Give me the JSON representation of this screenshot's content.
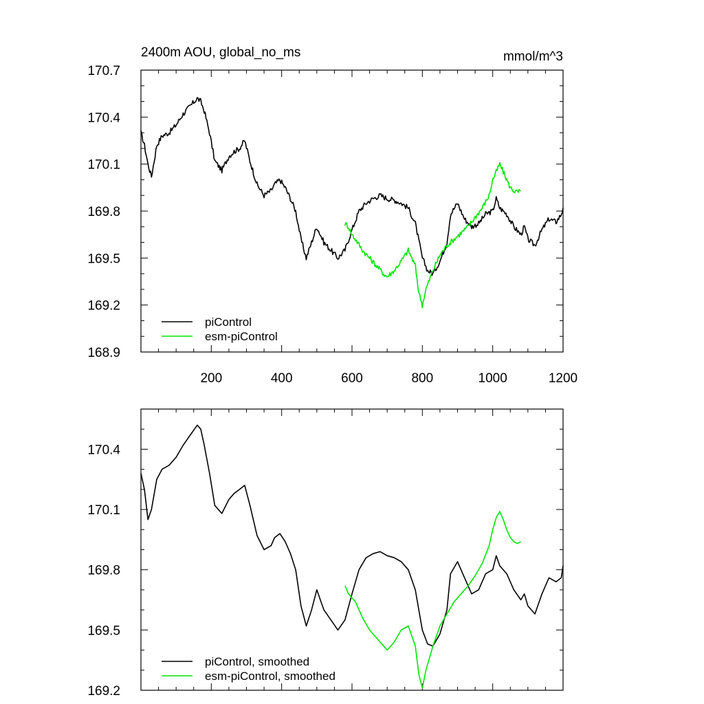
{
  "chart_data": [
    {
      "type": "line",
      "title_left": "2400m AOU, global_no_ms",
      "title_right": "mmol/m^3",
      "xlim": [
        0,
        1200
      ],
      "ylim": [
        168.9,
        170.7
      ],
      "xticks": [
        200,
        400,
        600,
        800,
        1000,
        1200
      ],
      "yticks": [
        168.9,
        169.2,
        169.5,
        169.8,
        170.1,
        170.4,
        170.7
      ],
      "ytick_labels": [
        "168.9",
        "169.2",
        "169.5",
        "169.8",
        "170.1",
        "170.4",
        "170.7"
      ],
      "legend_position": "bottom-left",
      "series": [
        {
          "name": "piControl",
          "color": "#000000",
          "x": [
            0,
            10,
            20,
            30,
            45,
            60,
            80,
            100,
            120,
            140,
            160,
            170,
            180,
            195,
            210,
            230,
            250,
            265,
            280,
            295,
            310,
            330,
            350,
            370,
            380,
            395,
            410,
            425,
            440,
            455,
            470,
            485,
            500,
            520,
            540,
            560,
            580,
            600,
            620,
            640,
            660,
            680,
            700,
            720,
            740,
            760,
            780,
            800,
            815,
            830,
            850,
            870,
            880,
            900,
            920,
            940,
            960,
            980,
            1000,
            1010,
            1020,
            1040,
            1060,
            1080,
            1090,
            1100,
            1120,
            1140,
            1160,
            1180,
            1195,
            1200
          ],
          "y": [
            170.3,
            170.22,
            170.1,
            170.02,
            170.22,
            170.28,
            170.3,
            170.35,
            170.42,
            170.47,
            170.52,
            170.5,
            170.44,
            170.3,
            170.12,
            170.06,
            170.15,
            170.18,
            170.2,
            170.25,
            170.12,
            169.97,
            169.9,
            169.93,
            169.97,
            170.0,
            169.95,
            169.88,
            169.8,
            169.62,
            169.5,
            169.6,
            169.7,
            169.6,
            169.55,
            169.5,
            169.55,
            169.68,
            169.8,
            169.85,
            169.88,
            169.9,
            169.88,
            169.87,
            169.85,
            169.82,
            169.72,
            169.5,
            169.42,
            169.4,
            169.48,
            169.6,
            169.78,
            169.85,
            169.75,
            169.7,
            169.72,
            169.78,
            169.8,
            169.88,
            169.82,
            169.78,
            169.7,
            169.65,
            169.7,
            169.62,
            169.58,
            169.68,
            169.75,
            169.73,
            169.78,
            169.82
          ]
        },
        {
          "name": "esm-piControl",
          "color": "#00e600",
          "x": [
            580,
            590,
            600,
            610,
            630,
            650,
            670,
            690,
            700,
            720,
            740,
            760,
            780,
            790,
            800,
            810,
            830,
            850,
            870,
            890,
            910,
            930,
            950,
            970,
            990,
            1000,
            1010,
            1020,
            1030,
            1040,
            1050,
            1060,
            1070,
            1080
          ],
          "y": [
            169.72,
            169.7,
            169.65,
            169.62,
            169.55,
            169.5,
            169.45,
            169.4,
            169.38,
            169.42,
            169.48,
            169.55,
            169.45,
            169.28,
            169.2,
            169.3,
            169.42,
            169.52,
            169.58,
            169.62,
            169.66,
            169.7,
            169.76,
            169.82,
            169.9,
            170.0,
            170.05,
            170.1,
            170.05,
            170.0,
            169.95,
            169.93,
            169.92,
            169.93
          ]
        }
      ]
    },
    {
      "type": "line",
      "xlim": [
        0,
        1200
      ],
      "ylim": [
        169.2,
        170.6
      ],
      "xticks": [
        200,
        400,
        600,
        800,
        1000,
        1200
      ],
      "yticks": [
        169.2,
        169.5,
        169.8,
        170.1,
        170.4
      ],
      "ytick_labels": [
        "169.2",
        "169.5",
        "169.8",
        "170.1",
        "170.4"
      ],
      "legend_position": "bottom-left",
      "series": [
        {
          "name": "piControl, smoothed",
          "color": "#000000",
          "x": [
            0,
            10,
            20,
            30,
            45,
            60,
            80,
            100,
            120,
            140,
            160,
            170,
            180,
            195,
            210,
            230,
            250,
            265,
            280,
            295,
            310,
            330,
            350,
            370,
            380,
            395,
            410,
            425,
            440,
            455,
            470,
            485,
            500,
            520,
            540,
            560,
            580,
            600,
            620,
            640,
            660,
            680,
            700,
            720,
            740,
            760,
            780,
            800,
            815,
            830,
            850,
            870,
            880,
            900,
            920,
            940,
            960,
            980,
            1000,
            1010,
            1020,
            1040,
            1060,
            1080,
            1090,
            1100,
            1120,
            1140,
            1160,
            1180,
            1195,
            1200
          ],
          "y": [
            170.28,
            170.2,
            170.05,
            170.1,
            170.25,
            170.3,
            170.32,
            170.36,
            170.42,
            170.47,
            170.52,
            170.5,
            170.42,
            170.28,
            170.12,
            170.08,
            170.15,
            170.18,
            170.2,
            170.22,
            170.12,
            169.97,
            169.9,
            169.92,
            169.96,
            169.98,
            169.94,
            169.88,
            169.8,
            169.62,
            169.52,
            169.6,
            169.7,
            169.6,
            169.55,
            169.5,
            169.55,
            169.68,
            169.8,
            169.86,
            169.88,
            169.89,
            169.87,
            169.86,
            169.84,
            169.8,
            169.7,
            169.5,
            169.43,
            169.42,
            169.48,
            169.6,
            169.78,
            169.84,
            169.76,
            169.68,
            169.7,
            169.78,
            169.8,
            169.87,
            169.82,
            169.78,
            169.7,
            169.65,
            169.68,
            169.62,
            169.58,
            169.68,
            169.76,
            169.74,
            169.76,
            169.82
          ]
        },
        {
          "name": "esm-piControl, smoothed",
          "color": "#00e600",
          "x": [
            580,
            590,
            600,
            610,
            630,
            650,
            670,
            690,
            700,
            720,
            740,
            760,
            780,
            790,
            800,
            810,
            830,
            850,
            870,
            890,
            910,
            930,
            950,
            970,
            990,
            1000,
            1010,
            1020,
            1030,
            1040,
            1050,
            1060,
            1070,
            1080
          ],
          "y": [
            169.72,
            169.68,
            169.66,
            169.64,
            169.56,
            169.5,
            169.46,
            169.42,
            169.4,
            169.44,
            169.5,
            169.52,
            169.42,
            169.28,
            169.21,
            169.3,
            169.42,
            169.52,
            169.58,
            169.64,
            169.68,
            169.72,
            169.77,
            169.83,
            169.92,
            170.0,
            170.06,
            170.09,
            170.05,
            170.0,
            169.96,
            169.94,
            169.93,
            169.94
          ]
        }
      ]
    }
  ]
}
